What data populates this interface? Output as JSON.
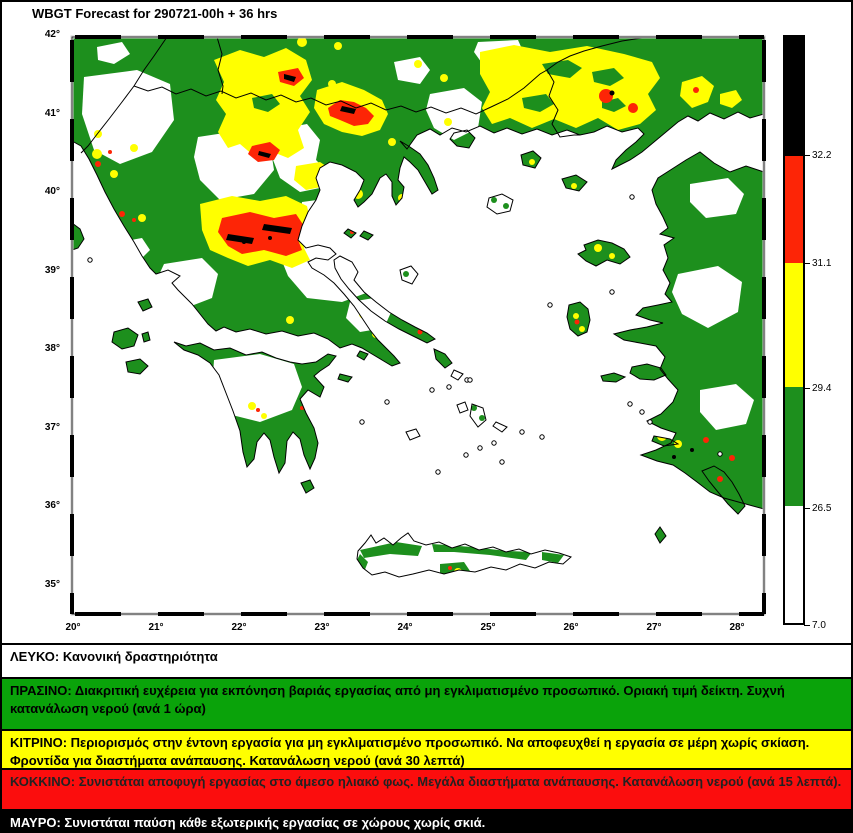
{
  "title": "WBGT Forecast for 290721-00h + 36 hrs",
  "map": {
    "x_tick_labels": [
      "20°",
      "21°",
      "22°",
      "23°",
      "24°",
      "25°",
      "26°",
      "27°",
      "28°"
    ],
    "y_tick_labels": [
      "42°",
      "41°",
      "40°",
      "39°",
      "38°",
      "37°",
      "36°",
      "35°"
    ]
  },
  "colorbar": {
    "segments": [
      {
        "color_name": "black",
        "color": "#000000",
        "bottom_label": "32.2"
      },
      {
        "color_name": "red",
        "color": "#fd2506",
        "bottom_label": "31.1"
      },
      {
        "color_name": "yellow",
        "color": "#ffff00",
        "bottom_label": "29.4"
      },
      {
        "color_name": "green",
        "color": "#1d8f1d",
        "bottom_label": "26.5"
      },
      {
        "color_name": "white",
        "color": "#ffffff",
        "bottom_label": "7.0"
      }
    ]
  },
  "legend": {
    "rows": [
      {
        "name": "white",
        "bg": "#ffffff",
        "fg": "#000000",
        "text": "ΛΕΥΚΟ: Κανονική δραστηριότητα"
      },
      {
        "name": "green",
        "bg": "#0aa30a",
        "fg": "#000000",
        "text": "ΠΡΑΣΙΝΟ: Διακριτική ευχέρεια για εκπόνηση βαριάς εργασίας από μη εγκλιματισμένο προσωπικό. Οριακή τιμή δείκτη. Συχνή κατανάλωση νερού (ανά 1 ώρα)"
      },
      {
        "name": "yellow",
        "bg": "#ffff00",
        "fg": "#000000",
        "text": "ΚΙΤΡΙΝΟ: Περιορισμός στην έντονη εργασία για μη εγκλιματισμένο προσωπικό. Να αποφευχθεί η εργασία σε μέρη χωρίς σκίαση. Φροντίδα για διαστήματα ανάπαυσης. Κατανάλωση νερού (ανά 30 λεπτά)"
      },
      {
        "name": "red",
        "bg": "#fb0d0d",
        "fg": "#222222",
        "text": "ΚΟΚΚΙΝΟ: Συνιστάται αποφυγή εργασίας στο άμεσο ηλιακό φως. Μεγάλα διαστήματα ανάπαυσης. Κατανάλωση νερού (ανά 15 λεπτά)."
      },
      {
        "name": "black",
        "bg": "#000000",
        "fg": "#ffffff",
        "text": "ΜΑΥΡΟ: Συνιστάται παύση κάθε εξωτερικής εργασίας σε χώρους χωρίς σκιά."
      }
    ]
  },
  "palette": {
    "map_green": "#1d8f1d",
    "yellow": "#ffff00",
    "red": "#fd2506",
    "black": "#000000",
    "white": "#ffffff"
  }
}
